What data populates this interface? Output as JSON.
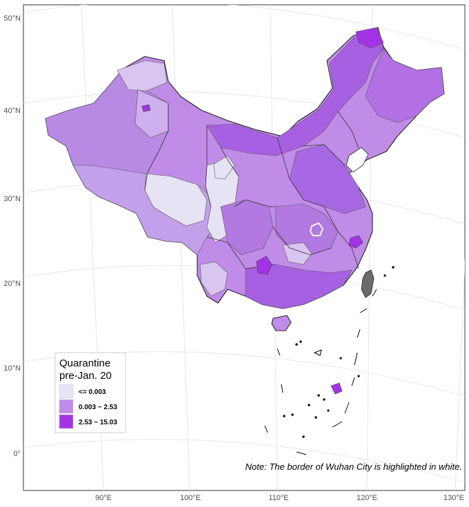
{
  "map": {
    "y_ticks": [
      "50°N",
      "40°N",
      "30°N",
      "20°N",
      "10°N",
      "0°"
    ],
    "x_ticks": [
      "90°E",
      "100°E",
      "110°E",
      "120°E",
      "130°E"
    ],
    "note": "Note: The border of Wuhan City is highlighted in white.",
    "legend": {
      "title_line1": "Quarantine",
      "title_line2": "pre-Jan. 20",
      "items": [
        {
          "label": "<= 0.003",
          "color": "#e6e3f5"
        },
        {
          "label": "0.003 ~ 2.53",
          "color": "#c08ce8"
        },
        {
          "label": "2.53 ~ 15.03",
          "color": "#a334e6"
        }
      ]
    },
    "colors": {
      "low": "#e6e3f5",
      "mid": "#c08ce8",
      "mid_alt": "#b07ee0",
      "high": "#a334e6",
      "taiwan": "#6b6b6b",
      "grid": "#e6e6e6",
      "panel_border": "#333333"
    }
  }
}
